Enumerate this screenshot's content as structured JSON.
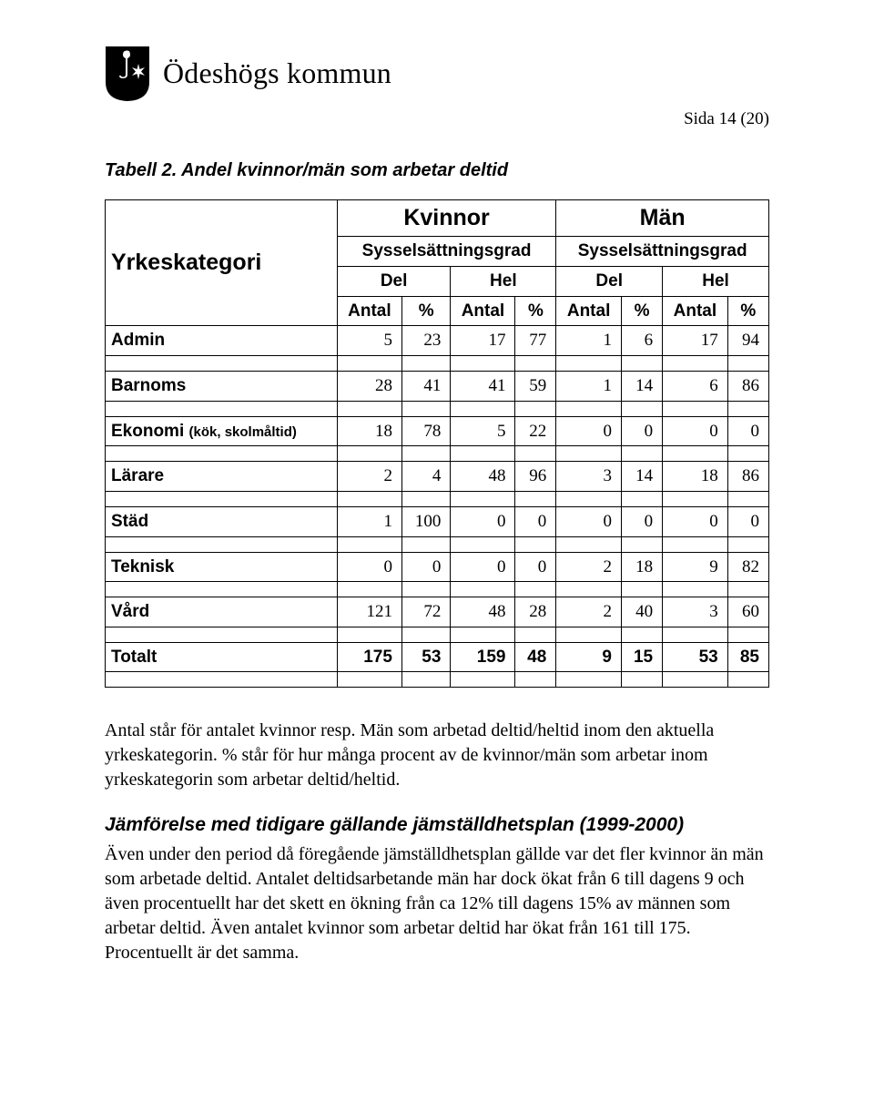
{
  "brand": "Ödeshögs kommun",
  "page_label": "Sida 14 (20)",
  "table_caption": "Tabell 2. Andel kvinnor/män som arbetar deltid",
  "headers": {
    "category": "Yrkeskategori",
    "women": "Kvinnor",
    "men": "Män",
    "empl_grade": "Sysselsättningsgrad",
    "part": "Del",
    "full": "Hel",
    "count": "Antal",
    "pct": "%"
  },
  "rows": [
    {
      "label": "Admin",
      "vals": [
        5,
        23,
        17,
        77,
        1,
        6,
        17,
        94
      ]
    },
    {
      "label": "Barnoms",
      "vals": [
        28,
        41,
        41,
        59,
        1,
        14,
        6,
        86
      ]
    },
    {
      "label_html": "Ekonomi <span class=\"small\">(kök, skolmåltid)</span>",
      "vals": [
        18,
        78,
        5,
        22,
        0,
        0,
        0,
        0
      ]
    },
    {
      "label": "Lärare",
      "vals": [
        2,
        4,
        48,
        96,
        3,
        14,
        18,
        86
      ]
    },
    {
      "label": "Städ",
      "vals": [
        1,
        100,
        0,
        0,
        0,
        0,
        0,
        0
      ]
    },
    {
      "label": "Teknisk",
      "vals": [
        0,
        0,
        0,
        0,
        2,
        18,
        9,
        82
      ]
    },
    {
      "label": "Vård",
      "vals": [
        121,
        72,
        48,
        28,
        2,
        40,
        3,
        60
      ]
    }
  ],
  "total": {
    "label": "Totalt",
    "vals": [
      175,
      53,
      159,
      48,
      9,
      15,
      53,
      85
    ]
  },
  "para1": "Antal står för antalet kvinnor resp. Män som arbetad deltid/heltid inom den aktuella yrkeskategorin. % står för hur många procent av de kvinnor/män som arbetar inom yrkeskategorin som arbetar deltid/heltid.",
  "heading2": "Jämförelse med tidigare gällande jämställdhetsplan (1999-2000)",
  "para2": "Även under den period då föregående jämställdhetsplan gällde var det fler kvinnor än män som arbetade deltid. Antalet deltidsarbetande män har dock ökat från 6 till dagens 9 och även   procentuellt har det skett en ökning från ca 12% till dagens 15% av männen som arbetar deltid. Även antalet kvinnor som arbetar deltid har ökat från 161 till 175. Procentuellt är det samma."
}
